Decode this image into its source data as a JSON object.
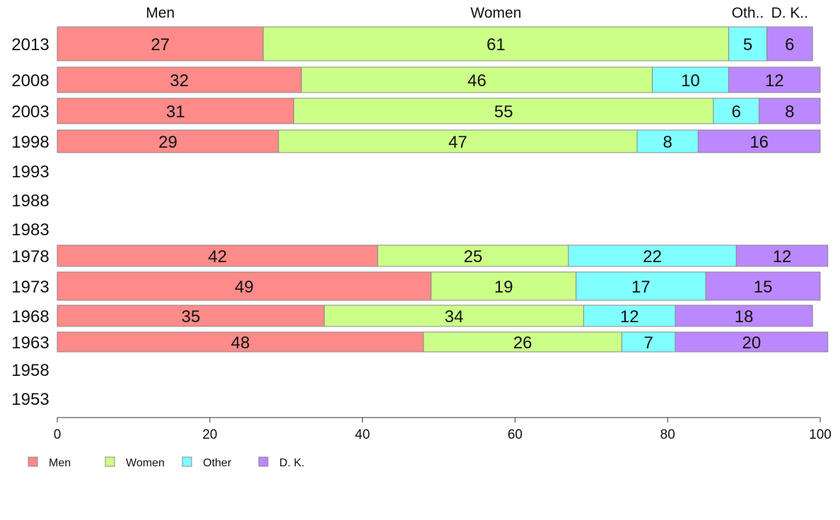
{
  "chart_data": {
    "type": "bar",
    "orientation": "horizontal",
    "stacked": true,
    "categories": [
      "2013",
      "2008",
      "2003",
      "1998",
      "1993",
      "1988",
      "1983",
      "1978",
      "1973",
      "1968",
      "1963",
      "1958",
      "1953"
    ],
    "series": [
      {
        "name": "Men",
        "color": "#ff8a8a",
        "values": [
          27,
          32,
          31,
          29,
          null,
          null,
          null,
          42,
          49,
          35,
          48,
          null,
          null
        ]
      },
      {
        "name": "Women",
        "color": "#ccff88",
        "values": [
          61,
          46,
          55,
          47,
          null,
          null,
          null,
          25,
          19,
          34,
          26,
          null,
          null
        ]
      },
      {
        "name": "Other",
        "color": "#80ffff",
        "values": [
          5,
          10,
          6,
          8,
          null,
          null,
          null,
          22,
          17,
          12,
          7,
          null,
          null
        ]
      },
      {
        "name": "D. K.",
        "color": "#bb88ff",
        "values": [
          6,
          12,
          8,
          16,
          null,
          null,
          null,
          12,
          15,
          18,
          20,
          null,
          null
        ]
      }
    ],
    "top_labels": [
      "Men",
      "Women",
      "Oth..",
      "D. K.."
    ],
    "xlim": [
      0,
      100
    ],
    "x_ticks": [
      0,
      20,
      40,
      60,
      80,
      100
    ],
    "grid": false,
    "legend_position": "bottom-left"
  }
}
